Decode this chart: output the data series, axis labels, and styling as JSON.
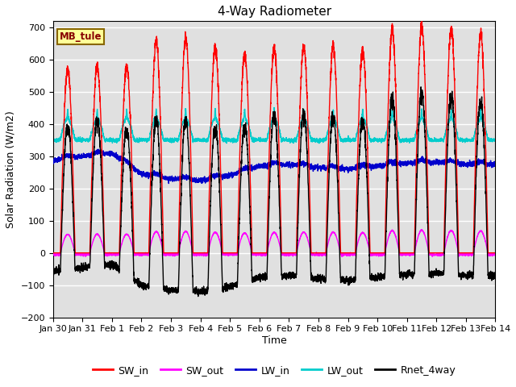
{
  "title": "4-Way Radiometer",
  "xlabel": "Time",
  "ylabel": "Solar Radiation (W/m2)",
  "station_label": "MB_tule",
  "ylim": [
    -200,
    720
  ],
  "yticks": [
    -200,
    -100,
    0,
    100,
    200,
    300,
    400,
    500,
    600,
    700
  ],
  "x_tick_labels": [
    "Jan 30",
    "Jan 31",
    "Feb 1",
    "Feb 2",
    "Feb 3",
    "Feb 4",
    "Feb 5",
    "Feb 6",
    "Feb 7",
    "Feb 8",
    "Feb 9",
    "Feb 10",
    "Feb 11",
    "Feb 12",
    "Feb 13",
    "Feb 14"
  ],
  "num_days": 15,
  "points_per_day": 288,
  "sw_in_peaks": [
    570,
    580,
    580,
    655,
    665,
    640,
    615,
    635,
    640,
    640,
    630,
    690,
    700,
    695,
    680
  ],
  "lw_in_knots_x": [
    0,
    0.5,
    1,
    2,
    3,
    4,
    5,
    6,
    7,
    8,
    9,
    10,
    11,
    12,
    13,
    14,
    15
  ],
  "lw_in_knots_y": [
    285,
    295,
    300,
    310,
    245,
    230,
    225,
    240,
    270,
    275,
    265,
    260,
    270,
    278,
    282,
    275,
    275
  ],
  "lw_out_base": 350,
  "series": {
    "SW_in": {
      "color": "#FF0000",
      "lw": 1.0
    },
    "SW_out": {
      "color": "#FF00FF",
      "lw": 1.0
    },
    "LW_in": {
      "color": "#0000CC",
      "lw": 1.0
    },
    "LW_out": {
      "color": "#00CCCC",
      "lw": 1.0
    },
    "Rnet_4way": {
      "color": "#000000",
      "lw": 1.0
    }
  },
  "legend_items": [
    {
      "label": "SW_in",
      "color": "#FF0000"
    },
    {
      "label": "SW_out",
      "color": "#FF00FF"
    },
    {
      "label": "LW_in",
      "color": "#0000CC"
    },
    {
      "label": "LW_out",
      "color": "#00CCCC"
    },
    {
      "label": "Rnet_4way",
      "color": "#000000"
    }
  ],
  "bg_color": "#FFFFFF",
  "plot_bg_color": "#E0E0E0",
  "grid_color": "#FFFFFF",
  "title_fontsize": 11,
  "label_fontsize": 9,
  "tick_fontsize": 8
}
